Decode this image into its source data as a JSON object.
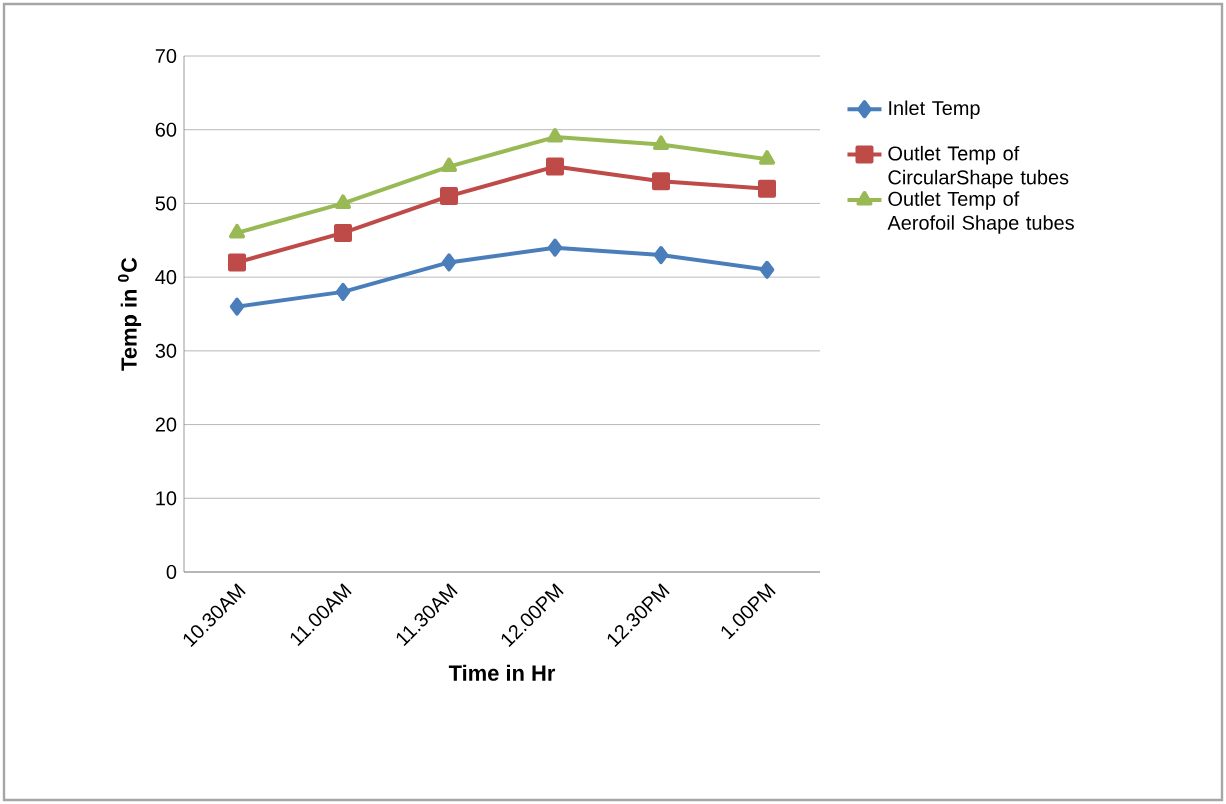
{
  "chart_data": {
    "type": "line",
    "xlabel": "Time in Hr",
    "ylabel": "Temp in $^{0}$C",
    "categories": [
      "10.30AM",
      "11.00AM",
      "11.30AM",
      "12.00PM",
      "12.30PM",
      "1.00PM"
    ],
    "series": [
      {
        "name": "Inlet Temp",
        "color": "#4a7ebb",
        "marker": "diamond",
        "values": [
          36,
          38,
          42,
          44,
          43,
          41
        ]
      },
      {
        "name": "Outlet Temp of CircularShape tubes",
        "color": "#be4b48",
        "marker": "square",
        "values": [
          42,
          46,
          51,
          55,
          53,
          52
        ]
      },
      {
        "name": "Outlet Temp of Aerofoil Shape tubes",
        "color": "#98b954",
        "marker": "triangle",
        "values": [
          46,
          50,
          55,
          59,
          58,
          56
        ]
      }
    ],
    "ylim": [
      0,
      70
    ],
    "yticks": [
      0,
      10,
      20,
      30,
      40,
      50,
      60,
      70
    ],
    "grid": "y",
    "legend": "right"
  }
}
